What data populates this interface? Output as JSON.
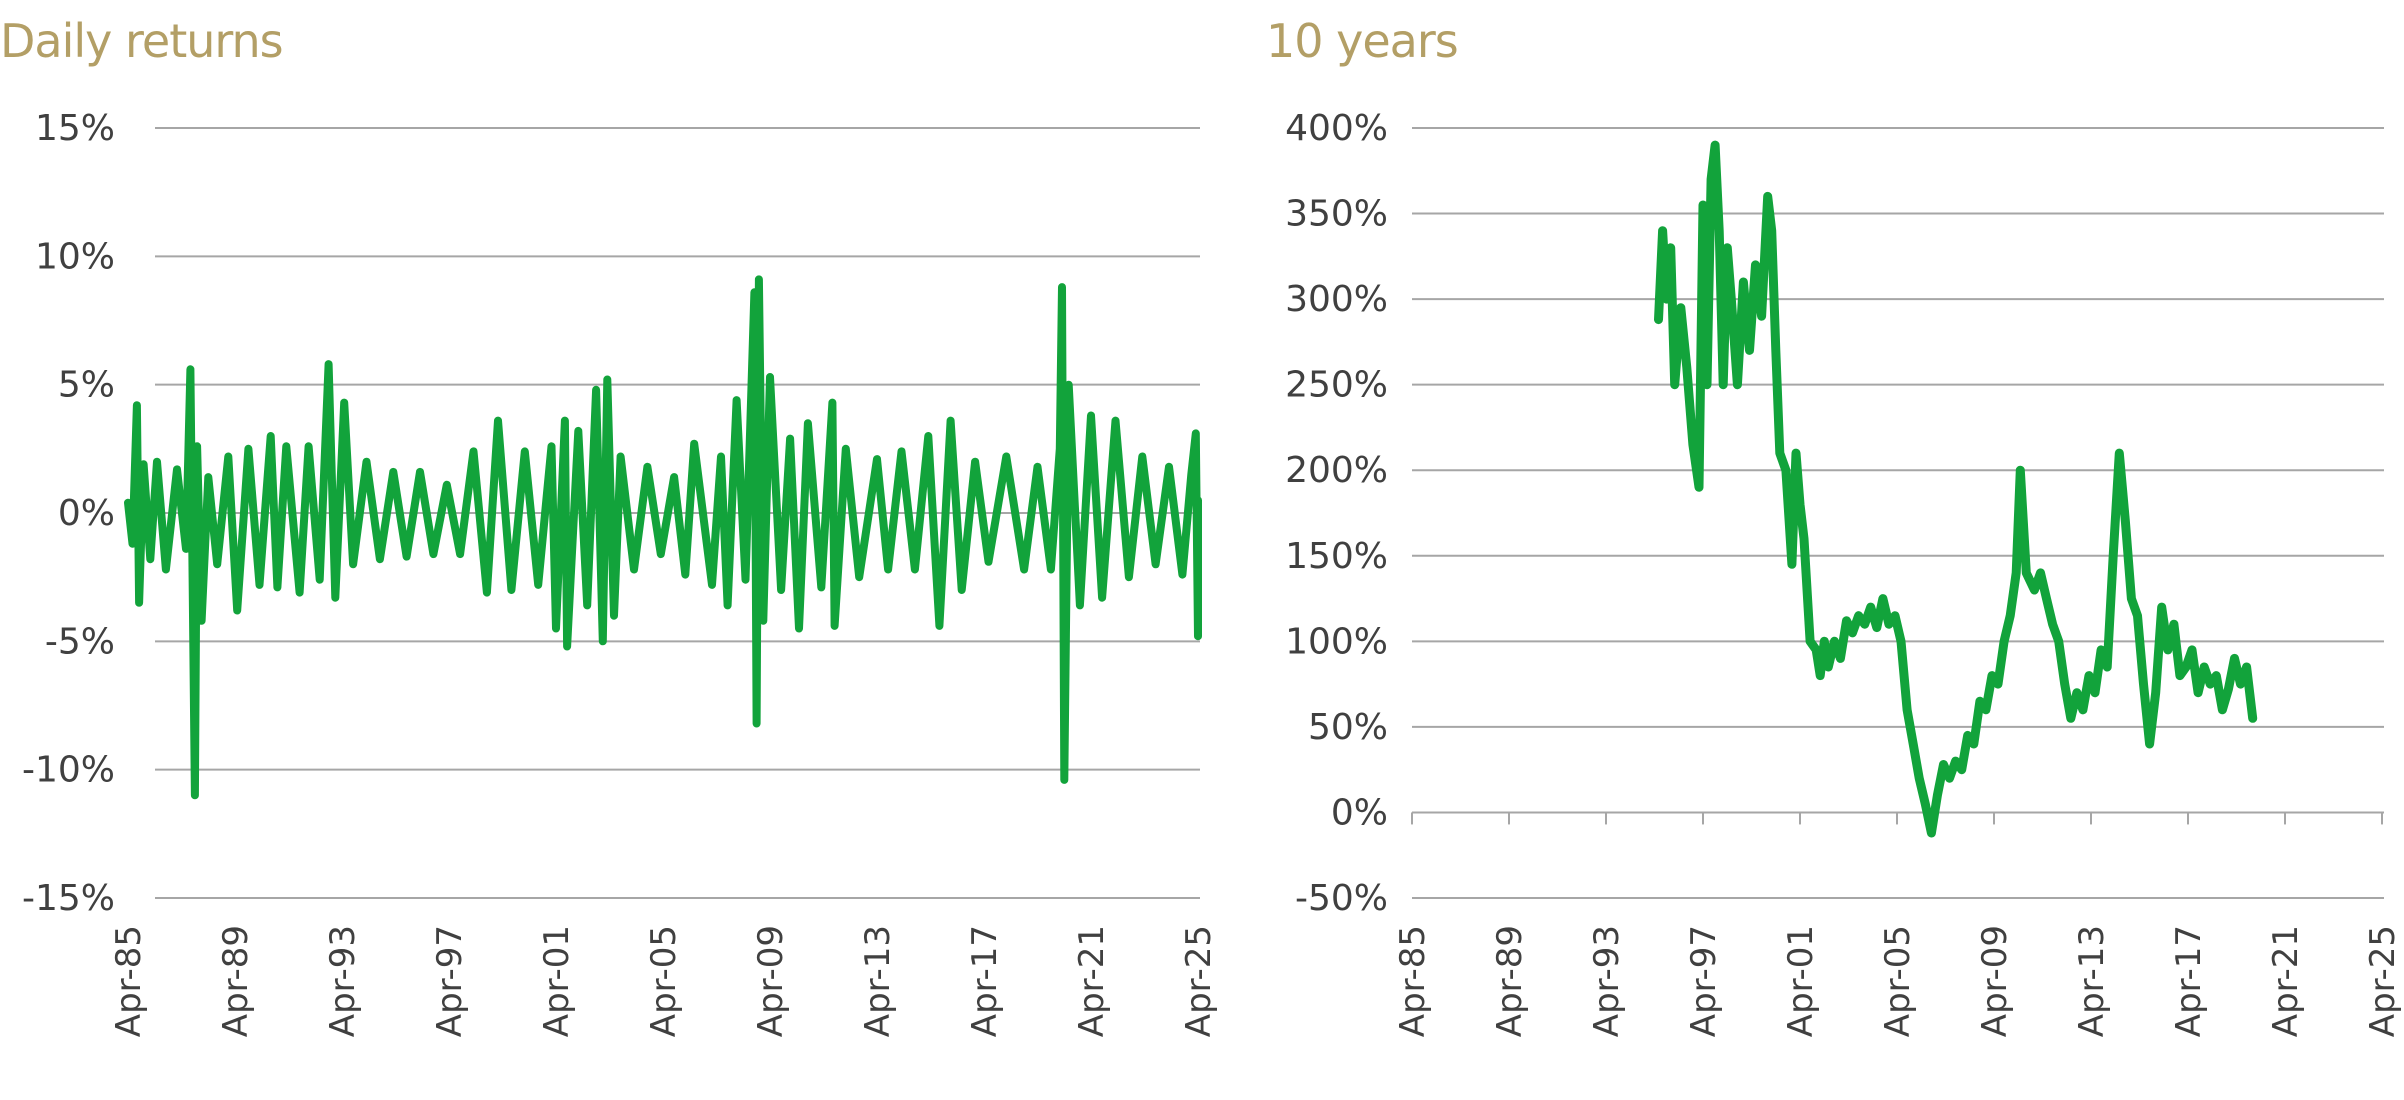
{
  "colors": {
    "title": "#b39f66",
    "series": "#12a33b",
    "grid": "#a6a6a6",
    "text": "#404040"
  },
  "chart_data": [
    {
      "type": "line",
      "title": "Daily returns",
      "xlabel": "",
      "ylabel": "",
      "x_ticks": [
        "Apr-85",
        "Apr-89",
        "Apr-93",
        "Apr-97",
        "Apr-01",
        "Apr-05",
        "Apr-09",
        "Apr-13",
        "Apr-17",
        "Apr-21",
        "Apr-25"
      ],
      "y_ticks": [
        "15%",
        "10%",
        "5%",
        "0%",
        "-5%",
        "-10%",
        "-15%"
      ],
      "ylim": [
        -15,
        15
      ],
      "xlim": [
        "1985-04",
        "2025-04"
      ],
      "grid": true,
      "legend": "none",
      "series": [
        {
          "values": [
            [
              "1985-04",
              0.4
            ],
            [
              "1985-06",
              -1.2
            ],
            [
              "1985-08",
              4.2
            ],
            [
              "1985-09",
              -3.5
            ],
            [
              "1985-11",
              1.9
            ],
            [
              "1986-02",
              -1.8
            ],
            [
              "1986-05",
              2.0
            ],
            [
              "1986-09",
              -2.2
            ],
            [
              "1987-02",
              1.7
            ],
            [
              "1987-06",
              -1.4
            ],
            [
              "1987-08",
              5.6
            ],
            [
              "1987-09",
              -2.5
            ],
            [
              "1987-10",
              -11.0
            ],
            [
              "1987-11",
              2.6
            ],
            [
              "1988-01",
              -4.2
            ],
            [
              "1988-04",
              1.4
            ],
            [
              "1988-08",
              -2.0
            ],
            [
              "1989-01",
              2.2
            ],
            [
              "1989-05",
              -3.8
            ],
            [
              "1989-10",
              2.5
            ],
            [
              "1990-03",
              -2.8
            ],
            [
              "1990-08",
              3.0
            ],
            [
              "1990-11",
              -2.9
            ],
            [
              "1991-03",
              2.6
            ],
            [
              "1991-09",
              -3.1
            ],
            [
              "1992-01",
              2.6
            ],
            [
              "1992-06",
              -2.6
            ],
            [
              "1992-10",
              5.8
            ],
            [
              "1993-01",
              -3.3
            ],
            [
              "1993-05",
              4.3
            ],
            [
              "1993-09",
              -2.0
            ],
            [
              "1994-03",
              2.0
            ],
            [
              "1994-09",
              -1.8
            ],
            [
              "1995-03",
              1.6
            ],
            [
              "1995-09",
              -1.7
            ],
            [
              "1996-03",
              1.6
            ],
            [
              "1996-09",
              -1.6
            ],
            [
              "1997-03",
              1.1
            ],
            [
              "1997-09",
              -1.6
            ],
            [
              "1998-03",
              2.4
            ],
            [
              "1998-09",
              -3.1
            ],
            [
              "1999-02",
              3.6
            ],
            [
              "1999-08",
              -3.0
            ],
            [
              "2000-02",
              2.4
            ],
            [
              "2000-08",
              -2.8
            ],
            [
              "2001-02",
              2.6
            ],
            [
              "2001-04",
              -4.5
            ],
            [
              "2001-08",
              3.6
            ],
            [
              "2001-09",
              -5.2
            ],
            [
              "2002-02",
              3.2
            ],
            [
              "2002-06",
              -3.6
            ],
            [
              "2002-10",
              4.8
            ],
            [
              "2003-01",
              -5.0
            ],
            [
              "2003-03",
              5.2
            ],
            [
              "2003-06",
              -4.0
            ],
            [
              "2003-09",
              2.2
            ],
            [
              "2004-03",
              -2.2
            ],
            [
              "2004-09",
              1.8
            ],
            [
              "2005-03",
              -1.6
            ],
            [
              "2005-09",
              1.4
            ],
            [
              "2006-02",
              -2.4
            ],
            [
              "2006-06",
              2.7
            ],
            [
              "2007-02",
              -2.8
            ],
            [
              "2007-06",
              2.2
            ],
            [
              "2007-09",
              -3.6
            ],
            [
              "2008-01",
              4.4
            ],
            [
              "2008-05",
              -2.6
            ],
            [
              "2008-09",
              8.6
            ],
            [
              "2008-10",
              -8.2
            ],
            [
              "2008-11",
              9.1
            ],
            [
              "2009-01",
              -4.2
            ],
            [
              "2009-04",
              5.3
            ],
            [
              "2009-09",
              -3.0
            ],
            [
              "2010-01",
              2.9
            ],
            [
              "2010-05",
              -4.5
            ],
            [
              "2010-09",
              3.5
            ],
            [
              "2011-03",
              -2.9
            ],
            [
              "2011-08",
              4.3
            ],
            [
              "2011-09",
              -4.4
            ],
            [
              "2012-02",
              2.5
            ],
            [
              "2012-08",
              -2.5
            ],
            [
              "2013-04",
              2.1
            ],
            [
              "2013-09",
              -2.2
            ],
            [
              "2014-03",
              2.4
            ],
            [
              "2014-09",
              -2.2
            ],
            [
              "2015-03",
              3.0
            ],
            [
              "2015-08",
              -4.4
            ],
            [
              "2016-01",
              3.6
            ],
            [
              "2016-06",
              -3.0
            ],
            [
              "2016-12",
              2.0
            ],
            [
              "2017-06",
              -1.9
            ],
            [
              "2018-02",
              2.2
            ],
            [
              "2018-10",
              -2.2
            ],
            [
              "2019-04",
              1.8
            ],
            [
              "2019-10",
              -2.2
            ],
            [
              "2020-02",
              2.5
            ],
            [
              "2020-03",
              8.8
            ],
            [
              "2020-04",
              -10.4
            ],
            [
              "2020-06",
              5.0
            ],
            [
              "2020-11",
              -3.6
            ],
            [
              "2021-04",
              3.8
            ],
            [
              "2021-09",
              -3.3
            ],
            [
              "2022-03",
              3.6
            ],
            [
              "2022-09",
              -2.5
            ],
            [
              "2023-03",
              2.2
            ],
            [
              "2023-09",
              -2.0
            ],
            [
              "2024-03",
              1.8
            ],
            [
              "2024-09",
              -2.4
            ],
            [
              "2025-01",
              1.5
            ],
            [
              "2025-03",
              3.1
            ],
            [
              "2025-04",
              -4.8
            ],
            [
              "2025-04",
              0.5
            ]
          ]
        }
      ]
    },
    {
      "type": "line",
      "title": "10 years",
      "xlabel": "",
      "ylabel": "",
      "x_ticks": [
        "Apr-85",
        "Apr-89",
        "Apr-93",
        "Apr-97",
        "Apr-01",
        "Apr-05",
        "Apr-09",
        "Apr-13",
        "Apr-17",
        "Apr-21",
        "Apr-25"
      ],
      "y_ticks": [
        "400%",
        "350%",
        "300%",
        "250%",
        "200%",
        "150%",
        "100%",
        "50%",
        "0%",
        "-50%"
      ],
      "ylim": [
        -50,
        400
      ],
      "xlim": [
        "1985-04",
        "2025-04"
      ],
      "grid": true,
      "legend": "none",
      "series": [
        {
          "values": [
            [
              "1995-06",
              288
            ],
            [
              "1995-08",
              340
            ],
            [
              "1995-10",
              300
            ],
            [
              "1995-12",
              330
            ],
            [
              "1996-02",
              250
            ],
            [
              "1996-05",
              295
            ],
            [
              "1996-08",
              260
            ],
            [
              "1996-11",
              215
            ],
            [
              "1997-02",
              190
            ],
            [
              "1997-04",
              355
            ],
            [
              "1997-06",
              250
            ],
            [
              "1997-08",
              370
            ],
            [
              "1997-10",
              390
            ],
            [
              "1997-12",
              340
            ],
            [
              "1998-02",
              250
            ],
            [
              "1998-04",
              330
            ],
            [
              "1998-06",
              300
            ],
            [
              "1998-09",
              250
            ],
            [
              "1998-12",
              310
            ],
            [
              "1999-03",
              270
            ],
            [
              "1999-06",
              320
            ],
            [
              "1999-09",
              290
            ],
            [
              "1999-12",
              360
            ],
            [
              "2000-02",
              340
            ],
            [
              "2000-04",
              270
            ],
            [
              "2000-06",
              210
            ],
            [
              "2000-09",
              200
            ],
            [
              "2000-12",
              145
            ],
            [
              "2001-02",
              210
            ],
            [
              "2001-04",
              180
            ],
            [
              "2001-06",
              160
            ],
            [
              "2001-09",
              100
            ],
            [
              "2001-12",
              95
            ],
            [
              "2002-02",
              80
            ],
            [
              "2002-04",
              100
            ],
            [
              "2002-06",
              85
            ],
            [
              "2002-09",
              100
            ],
            [
              "2002-12",
              90
            ],
            [
              "2003-03",
              112
            ],
            [
              "2003-06",
              105
            ],
            [
              "2003-09",
              115
            ],
            [
              "2003-12",
              110
            ],
            [
              "2004-03",
              120
            ],
            [
              "2004-06",
              108
            ],
            [
              "2004-09",
              125
            ],
            [
              "2004-12",
              110
            ],
            [
              "2005-03",
              115
            ],
            [
              "2005-06",
              100
            ],
            [
              "2005-09",
              60
            ],
            [
              "2005-12",
              40
            ],
            [
              "2006-03",
              20
            ],
            [
              "2006-06",
              5
            ],
            [
              "2006-09",
              -12
            ],
            [
              "2006-12",
              10
            ],
            [
              "2007-03",
              28
            ],
            [
              "2007-06",
              20
            ],
            [
              "2007-09",
              30
            ],
            [
              "2007-12",
              25
            ],
            [
              "2008-03",
              45
            ],
            [
              "2008-06",
              40
            ],
            [
              "2008-09",
              65
            ],
            [
              "2008-12",
              60
            ],
            [
              "2009-03",
              80
            ],
            [
              "2009-06",
              75
            ],
            [
              "2009-09",
              100
            ],
            [
              "2009-12",
              115
            ],
            [
              "2010-03",
              140
            ],
            [
              "2010-05",
              200
            ],
            [
              "2010-08",
              140
            ],
            [
              "2010-12",
              130
            ],
            [
              "2011-03",
              140
            ],
            [
              "2011-06",
              125
            ],
            [
              "2011-09",
              110
            ],
            [
              "2011-12",
              100
            ],
            [
              "2012-03",
              75
            ],
            [
              "2012-06",
              55
            ],
            [
              "2012-09",
              70
            ],
            [
              "2012-12",
              60
            ],
            [
              "2013-03",
              80
            ],
            [
              "2013-06",
              70
            ],
            [
              "2013-09",
              95
            ],
            [
              "2013-12",
              85
            ],
            [
              "2014-03",
              150
            ],
            [
              "2014-06",
              210
            ],
            [
              "2014-09",
              170
            ],
            [
              "2014-12",
              125
            ],
            [
              "2015-03",
              115
            ],
            [
              "2015-06",
              75
            ],
            [
              "2015-09",
              40
            ],
            [
              "2015-12",
              70
            ],
            [
              "2016-03",
              120
            ],
            [
              "2016-06",
              95
            ],
            [
              "2016-09",
              110
            ],
            [
              "2016-12",
              80
            ],
            [
              "2017-03",
              85
            ],
            [
              "2017-06",
              95
            ],
            [
              "2017-09",
              70
            ],
            [
              "2017-12",
              85
            ],
            [
              "2018-03",
              75
            ],
            [
              "2018-06",
              80
            ],
            [
              "2018-09",
              60
            ],
            [
              "2018-12",
              72
            ],
            [
              "2019-03",
              90
            ],
            [
              "2019-06",
              75
            ],
            [
              "2019-09",
              85
            ],
            [
              "2019-12",
              55
            ]
          ]
        }
      ]
    }
  ]
}
